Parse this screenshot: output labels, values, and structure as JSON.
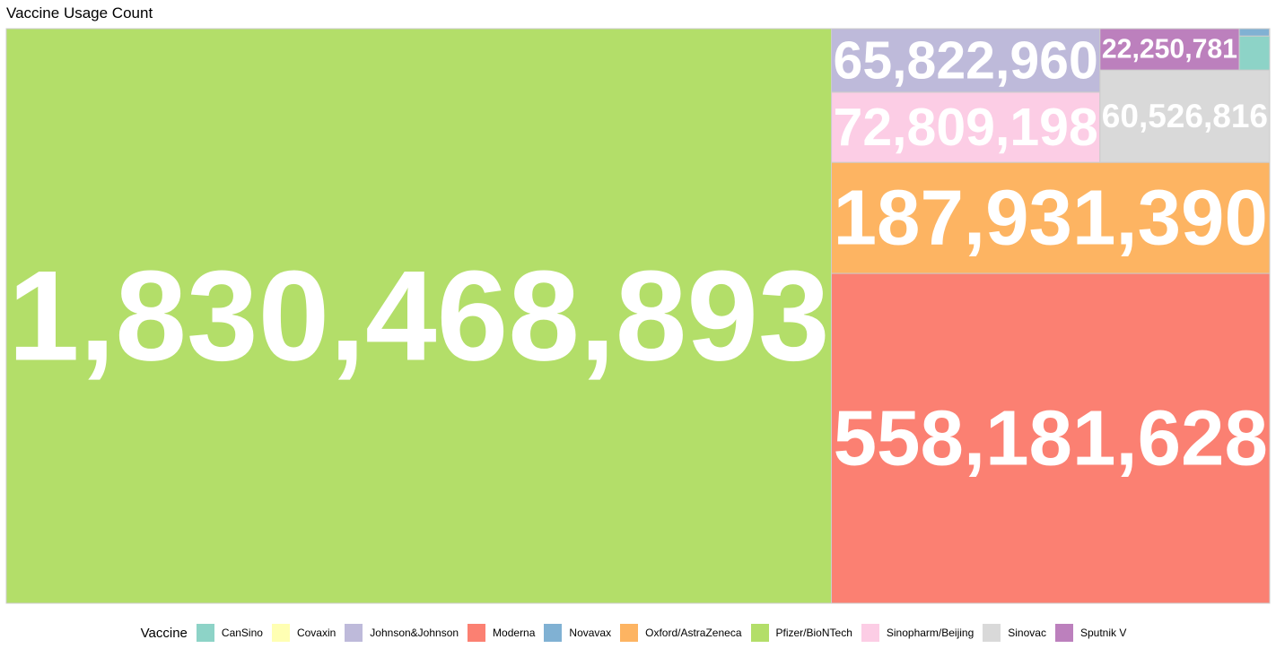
{
  "chart_data": {
    "type": "treemap",
    "title": "Vaccine Usage Count",
    "legend_title": "Vaccine",
    "legend_position": "bottom",
    "label_color": "#ffffff",
    "categories": [
      "CanSino",
      "Covaxin",
      "Johnson&Johnson",
      "Moderna",
      "Novavax",
      "Oxford/AstraZeneca",
      "Pfizer/BioNTech",
      "Sinopharm/Beijing",
      "Sinovac",
      "Sputnik V"
    ],
    "colors": {
      "CanSino": "#8DD3C7",
      "Covaxin": "#FFFFB3",
      "Johnson&Johnson": "#BEBADA",
      "Moderna": "#FB8072",
      "Novavax": "#80B1D3",
      "Oxford/AstraZeneca": "#FDB462",
      "Pfizer/BioNTech": "#B3DE69",
      "Sinopharm/Beijing": "#FCCDE5",
      "Sinovac": "#D9D9D9",
      "Sputnik V": "#BC80BD"
    },
    "values": [
      {
        "name": "Pfizer/BioNTech",
        "value": 1830468893,
        "label": "1,830,468,893"
      },
      {
        "name": "Moderna",
        "value": 558181628,
        "label": "558,181,628"
      },
      {
        "name": "Oxford/AstraZeneca",
        "value": 187931390,
        "label": "187,931,390"
      },
      {
        "name": "Sinopharm/Beijing",
        "value": 72809198,
        "label": "72,809,198"
      },
      {
        "name": "Johnson&Johnson",
        "value": 65822960,
        "label": "65,822,960"
      },
      {
        "name": "Sinovac",
        "value": 60526816,
        "label": "60,526,816"
      },
      {
        "name": "Sputnik V",
        "value": 22250781,
        "label": "22,250,781"
      },
      {
        "name": "CanSino",
        "value": 4000000,
        "label": ""
      },
      {
        "name": "Novavax",
        "value": 800000,
        "label": ""
      },
      {
        "name": "Covaxin",
        "value": 60000,
        "label": ""
      }
    ]
  }
}
